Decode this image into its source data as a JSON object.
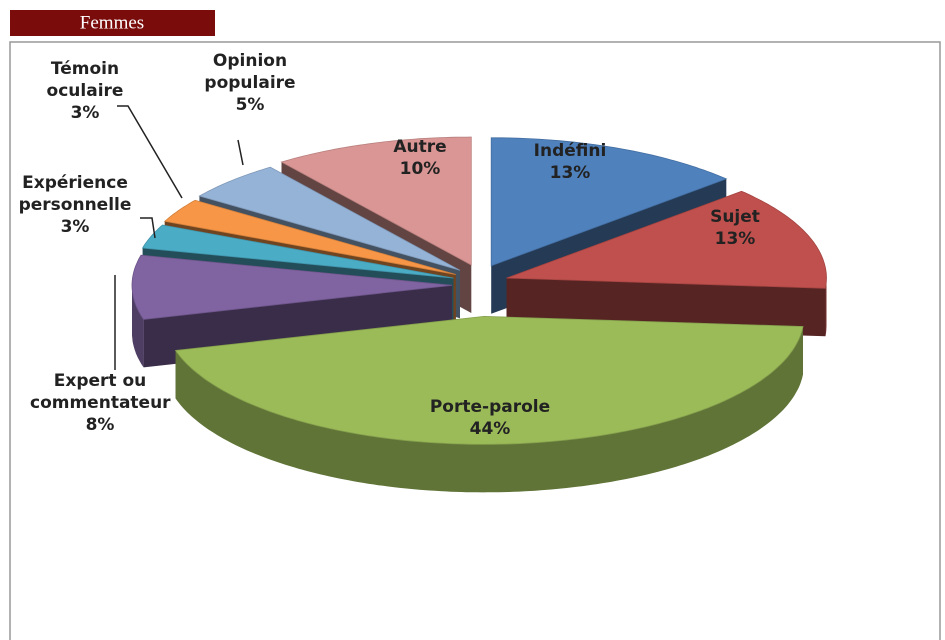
{
  "chart_data": {
    "type": "pie3d",
    "title": "Femmes",
    "categories": [
      "Indéfini",
      "Sujet",
      "Porte-parole",
      "Expert ou commentateur",
      "Expérience personnelle",
      "Témoin oculaire",
      "Opinion populaire",
      "Autre"
    ],
    "values": [
      13,
      13,
      44,
      8,
      3,
      3,
      5,
      10
    ],
    "value_labels": [
      "13%",
      "13%",
      "44%",
      "8%",
      "3%",
      "3%",
      "5%",
      "10%"
    ],
    "colors": [
      "#4f81bd",
      "#c0504d",
      "#9bbb59",
      "#8064a2",
      "#4bacc6",
      "#f79646",
      "#95b3d7",
      "#d99694"
    ]
  }
}
